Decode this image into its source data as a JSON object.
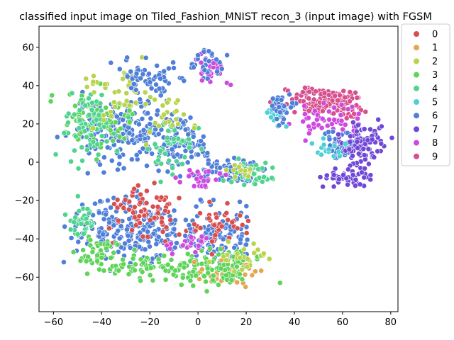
{
  "chart_data": {
    "type": "scatter",
    "title": "classified input image on Tiled_Fashion_MNIST recon_3 (input image) with FGSM",
    "xlabel": "",
    "ylabel": "",
    "xlim": [
      -66,
      83
    ],
    "ylim": [
      -78,
      71
    ],
    "xticks": [
      -60,
      -40,
      -20,
      0,
      20,
      40,
      60,
      80
    ],
    "yticks": [
      -60,
      -40,
      -20,
      0,
      20,
      40,
      60
    ],
    "xtick_labels": [
      "−60",
      "−40",
      "−20",
      "0",
      "20",
      "40",
      "60",
      "80"
    ],
    "ytick_labels": [
      "−60",
      "−40",
      "−20",
      "0",
      "20",
      "40",
      "60"
    ],
    "grid": false,
    "legend": {
      "placement": "outside-top-right",
      "entries": [
        {
          "label": "0",
          "color": "#d94f4f"
        },
        {
          "label": "1",
          "color": "#e0a850"
        },
        {
          "label": "2",
          "color": "#b8d44c"
        },
        {
          "label": "3",
          "color": "#5ed45a"
        },
        {
          "label": "4",
          "color": "#4fd490"
        },
        {
          "label": "5",
          "color": "#4ccfd8"
        },
        {
          "label": "6",
          "color": "#4f7fd8"
        },
        {
          "label": "7",
          "color": "#7048d6"
        },
        {
          "label": "8",
          "color": "#cd4ae0"
        },
        {
          "label": "9",
          "color": "#d84f8e"
        }
      ]
    },
    "clusters": [
      {
        "label": "6",
        "center": [
          -30,
          18
        ],
        "spread": [
          22,
          16
        ],
        "count": 200
      },
      {
        "label": "3",
        "center": [
          -42,
          20
        ],
        "spread": [
          14,
          14
        ],
        "count": 80
      },
      {
        "label": "4",
        "center": [
          -45,
          18
        ],
        "spread": [
          12,
          15
        ],
        "count": 70
      },
      {
        "label": "2",
        "center": [
          -32,
          35
        ],
        "spread": [
          16,
          12
        ],
        "count": 40
      },
      {
        "label": "6",
        "center": [
          -20,
          45
        ],
        "spread": [
          14,
          8
        ],
        "count": 60
      },
      {
        "label": "6",
        "center": [
          -8,
          10
        ],
        "spread": [
          12,
          14
        ],
        "count": 90
      },
      {
        "label": "4",
        "center": [
          -10,
          8
        ],
        "spread": [
          10,
          12
        ],
        "count": 40
      },
      {
        "label": "2",
        "center": [
          -12,
          25
        ],
        "spread": [
          10,
          10
        ],
        "count": 25
      },
      {
        "label": "8",
        "center": [
          5,
          50
        ],
        "spread": [
          6,
          8
        ],
        "count": 35
      },
      {
        "label": "6",
        "center": [
          4,
          52
        ],
        "spread": [
          6,
          8
        ],
        "count": 25
      },
      {
        "label": "6",
        "center": [
          14,
          -4
        ],
        "spread": [
          12,
          6
        ],
        "count": 80
      },
      {
        "label": "4",
        "center": [
          22,
          -6
        ],
        "spread": [
          8,
          5
        ],
        "count": 40
      },
      {
        "label": "2",
        "center": [
          18,
          -4
        ],
        "spread": [
          6,
          4
        ],
        "count": 15
      },
      {
        "label": "8",
        "center": [
          2,
          -8
        ],
        "spread": [
          10,
          6
        ],
        "count": 25
      },
      {
        "label": "6",
        "center": [
          -28,
          -35
        ],
        "spread": [
          20,
          14
        ],
        "count": 220
      },
      {
        "label": "0",
        "center": [
          -22,
          -28
        ],
        "spread": [
          14,
          12
        ],
        "count": 70
      },
      {
        "label": "4",
        "center": [
          -48,
          -30
        ],
        "spread": [
          6,
          8
        ],
        "count": 40
      },
      {
        "label": "3",
        "center": [
          -15,
          -55
        ],
        "spread": [
          22,
          6
        ],
        "count": 90
      },
      {
        "label": "6",
        "center": [
          8,
          -38
        ],
        "spread": [
          14,
          14
        ],
        "count": 110
      },
      {
        "label": "0",
        "center": [
          8,
          -32
        ],
        "spread": [
          10,
          10
        ],
        "count": 40
      },
      {
        "label": "1",
        "center": [
          12,
          -58
        ],
        "spread": [
          12,
          8
        ],
        "count": 50
      },
      {
        "label": "3",
        "center": [
          10,
          -55
        ],
        "spread": [
          14,
          10
        ],
        "count": 80
      },
      {
        "label": "2",
        "center": [
          18,
          -50
        ],
        "spread": [
          10,
          8
        ],
        "count": 25
      },
      {
        "label": "8",
        "center": [
          -5,
          -42
        ],
        "spread": [
          8,
          6
        ],
        "count": 20
      },
      {
        "label": "3",
        "center": [
          -42,
          -48
        ],
        "spread": [
          8,
          10
        ],
        "count": 40
      },
      {
        "label": "9",
        "center": [
          50,
          32
        ],
        "spread": [
          14,
          6
        ],
        "count": 110
      },
      {
        "label": "9",
        "center": [
          62,
          28
        ],
        "spread": [
          6,
          8
        ],
        "count": 40
      },
      {
        "label": "8",
        "center": [
          55,
          22
        ],
        "spread": [
          14,
          8
        ],
        "count": 50
      },
      {
        "label": "6",
        "center": [
          60,
          8
        ],
        "spread": [
          8,
          6
        ],
        "count": 60
      },
      {
        "label": "7",
        "center": [
          68,
          10
        ],
        "spread": [
          8,
          10
        ],
        "count": 90
      },
      {
        "label": "7",
        "center": [
          62,
          -8
        ],
        "spread": [
          10,
          4
        ],
        "count": 50
      },
      {
        "label": "5",
        "center": [
          33,
          25
        ],
        "spread": [
          4,
          6
        ],
        "count": 25
      },
      {
        "label": "5",
        "center": [
          55,
          8
        ],
        "spread": [
          6,
          6
        ],
        "count": 15
      },
      {
        "label": "6",
        "center": [
          35,
          28
        ],
        "spread": [
          5,
          6
        ],
        "count": 30
      }
    ]
  }
}
